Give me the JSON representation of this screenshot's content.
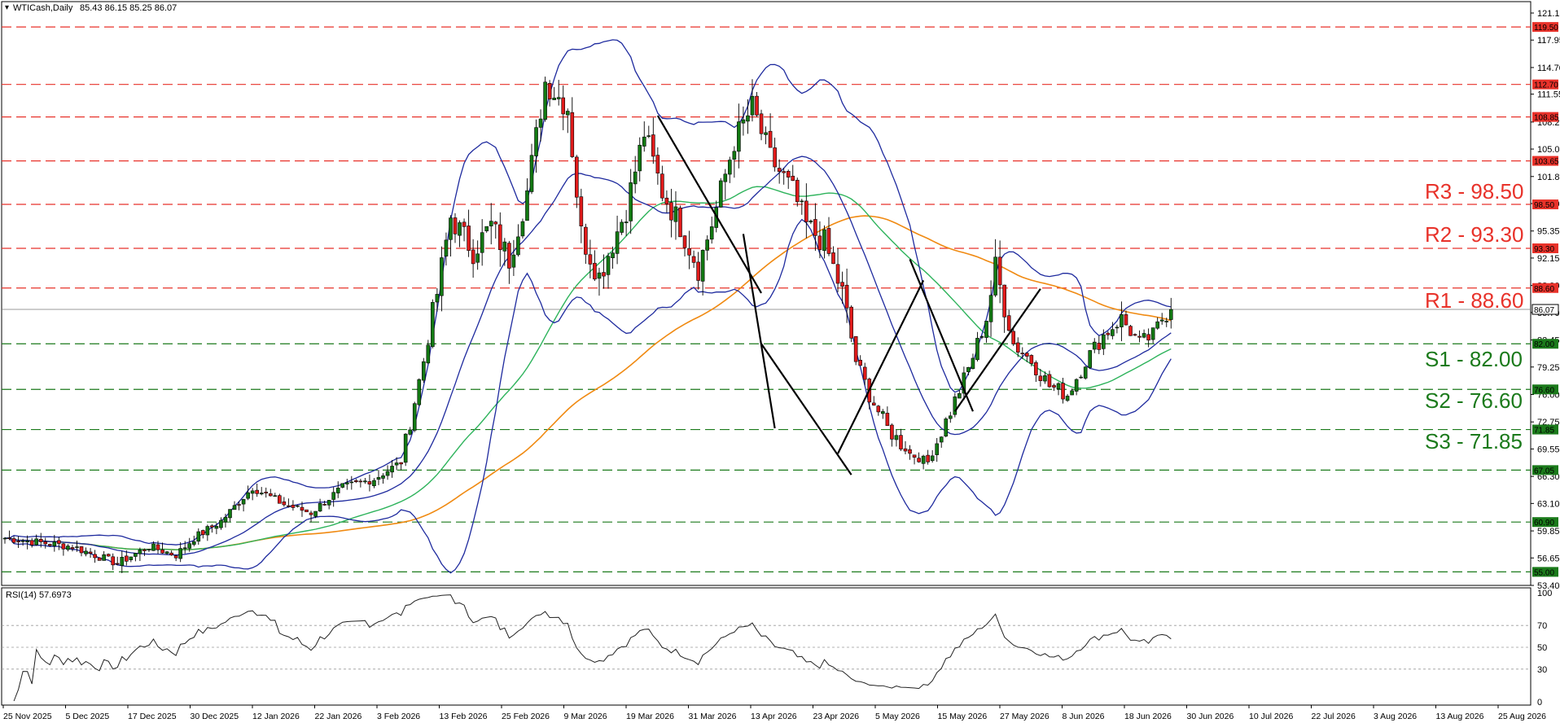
{
  "header": {
    "symbol": "WTICash,Daily",
    "ohlc": "85.43 86.15 85.25 86.07"
  },
  "rsi_header": "RSI(14) 57.6973",
  "colors": {
    "background": "#ffffff",
    "resistance": "#e8322a",
    "support": "#1b7a1b",
    "bullish": "#137a13",
    "bearish": "#e01b1b",
    "bollinger": "#1e2a9e",
    "ma_fast": "#2db35b",
    "ma_slow": "#f08a12",
    "trend": "#000000",
    "current": "#7a7a7a"
  },
  "levels": {
    "resistance": [
      {
        "value": 119.5,
        "tag": "119.50"
      },
      {
        "value": 112.7,
        "tag": "112.70"
      },
      {
        "value": 108.85,
        "tag": "108.85"
      },
      {
        "value": 103.65,
        "tag": "103.65"
      },
      {
        "value": 98.5,
        "tag": "98.50",
        "label": "R3 - 98.50"
      },
      {
        "value": 93.3,
        "tag": "93.30",
        "label": "R2 - 93.30"
      },
      {
        "value": 88.6,
        "tag": "88.60",
        "label": "R1 - 88.60"
      }
    ],
    "support": [
      {
        "value": 82.0,
        "tag": "82.00",
        "label": "S1 - 82.00"
      },
      {
        "value": 76.6,
        "tag": "76.60",
        "label": "S2 - 76.60"
      },
      {
        "value": 71.85,
        "tag": "71.85",
        "label": "S3 - 71.85"
      },
      {
        "value": 67.05,
        "tag": "67.05"
      },
      {
        "value": 60.9,
        "tag": "60.90"
      },
      {
        "value": 55.0,
        "tag": "55.00"
      }
    ],
    "current": {
      "value": 86.07,
      "tag": "86.07"
    }
  },
  "chart_data": {
    "type": "candlestick",
    "ylim": [
      53.4,
      122.5
    ],
    "price_ticks": [
      "121.15",
      "117.95",
      "114.70",
      "111.55",
      "108.25",
      "105.05",
      "101.80",
      "98.60",
      "95.35",
      "92.15",
      "88.90",
      "85.70",
      "82.45",
      "79.25",
      "76.00",
      "72.75",
      "69.55",
      "66.30",
      "63.10",
      "59.85",
      "56.65",
      "53.40"
    ],
    "x_labels": [
      "25 Nov 2025",
      "5 Dec 2025",
      "17 Dec 2025",
      "30 Dec 2025",
      "12 Jan 2026",
      "22 Jan 2026",
      "3 Feb 2026",
      "13 Feb 2026",
      "25 Feb 2026",
      "9 Mar 2026",
      "19 Mar 2026",
      "31 Mar 2026",
      "13 Apr 2026",
      "23 Apr 2026",
      "5 May 2026",
      "15 May 2026",
      "27 May 2026",
      "8 Jun 2026",
      "18 Jun 2026",
      "30 Jun 2026",
      "10 Jul 2026",
      "22 Jul 2026",
      "3 Aug 2026",
      "13 Aug 2026",
      "25 Aug 2026"
    ],
    "close_anchors": [
      [
        0,
        59
      ],
      [
        15,
        58
      ],
      [
        25,
        56
      ],
      [
        32,
        58
      ],
      [
        38,
        57
      ],
      [
        42,
        59
      ],
      [
        48,
        61
      ],
      [
        55,
        65
      ],
      [
        62,
        63
      ],
      [
        68,
        62
      ],
      [
        75,
        65
      ],
      [
        82,
        66
      ],
      [
        88,
        68
      ],
      [
        93,
        80
      ],
      [
        96,
        88
      ],
      [
        99,
        97
      ],
      [
        104,
        93
      ],
      [
        108,
        96
      ],
      [
        112,
        92
      ],
      [
        116,
        100
      ],
      [
        120,
        113
      ],
      [
        125,
        110
      ],
      [
        128,
        95
      ],
      [
        132,
        90
      ],
      [
        138,
        98
      ],
      [
        142,
        107
      ],
      [
        146,
        100
      ],
      [
        150,
        96
      ],
      [
        154,
        91
      ],
      [
        158,
        98
      ],
      [
        162,
        106
      ],
      [
        166,
        110
      ],
      [
        170,
        104
      ],
      [
        175,
        100
      ],
      [
        178,
        96
      ],
      [
        182,
        94
      ],
      [
        186,
        88
      ],
      [
        189,
        80
      ],
      [
        192,
        76
      ],
      [
        196,
        72
      ],
      [
        201,
        69
      ],
      [
        205,
        68
      ],
      [
        210,
        74
      ],
      [
        214,
        79
      ],
      [
        218,
        85
      ],
      [
        220,
        91
      ],
      [
        224,
        82
      ],
      [
        228,
        80
      ],
      [
        232,
        77
      ],
      [
        236,
        76
      ],
      [
        240,
        80
      ],
      [
        244,
        83
      ],
      [
        248,
        85
      ],
      [
        252,
        82
      ],
      [
        255,
        83
      ],
      [
        258,
        86
      ]
    ],
    "rsi": {
      "period": 14,
      "value": 57.6973,
      "ylim": [
        0,
        100
      ],
      "ticks": [
        "100",
        "70",
        "50",
        "30",
        "0"
      ]
    },
    "overlays": [
      "Bollinger Bands",
      "Moving average (fast)",
      "Moving average (slow)"
    ]
  },
  "labels": {
    "r3": "R3 - 98.50",
    "r2": "R2 - 93.30",
    "r1": "R1 - 88.60",
    "s1": "S1 - 82.00",
    "s2": "S2 - 76.60",
    "s3": "S3 - 71.85"
  }
}
